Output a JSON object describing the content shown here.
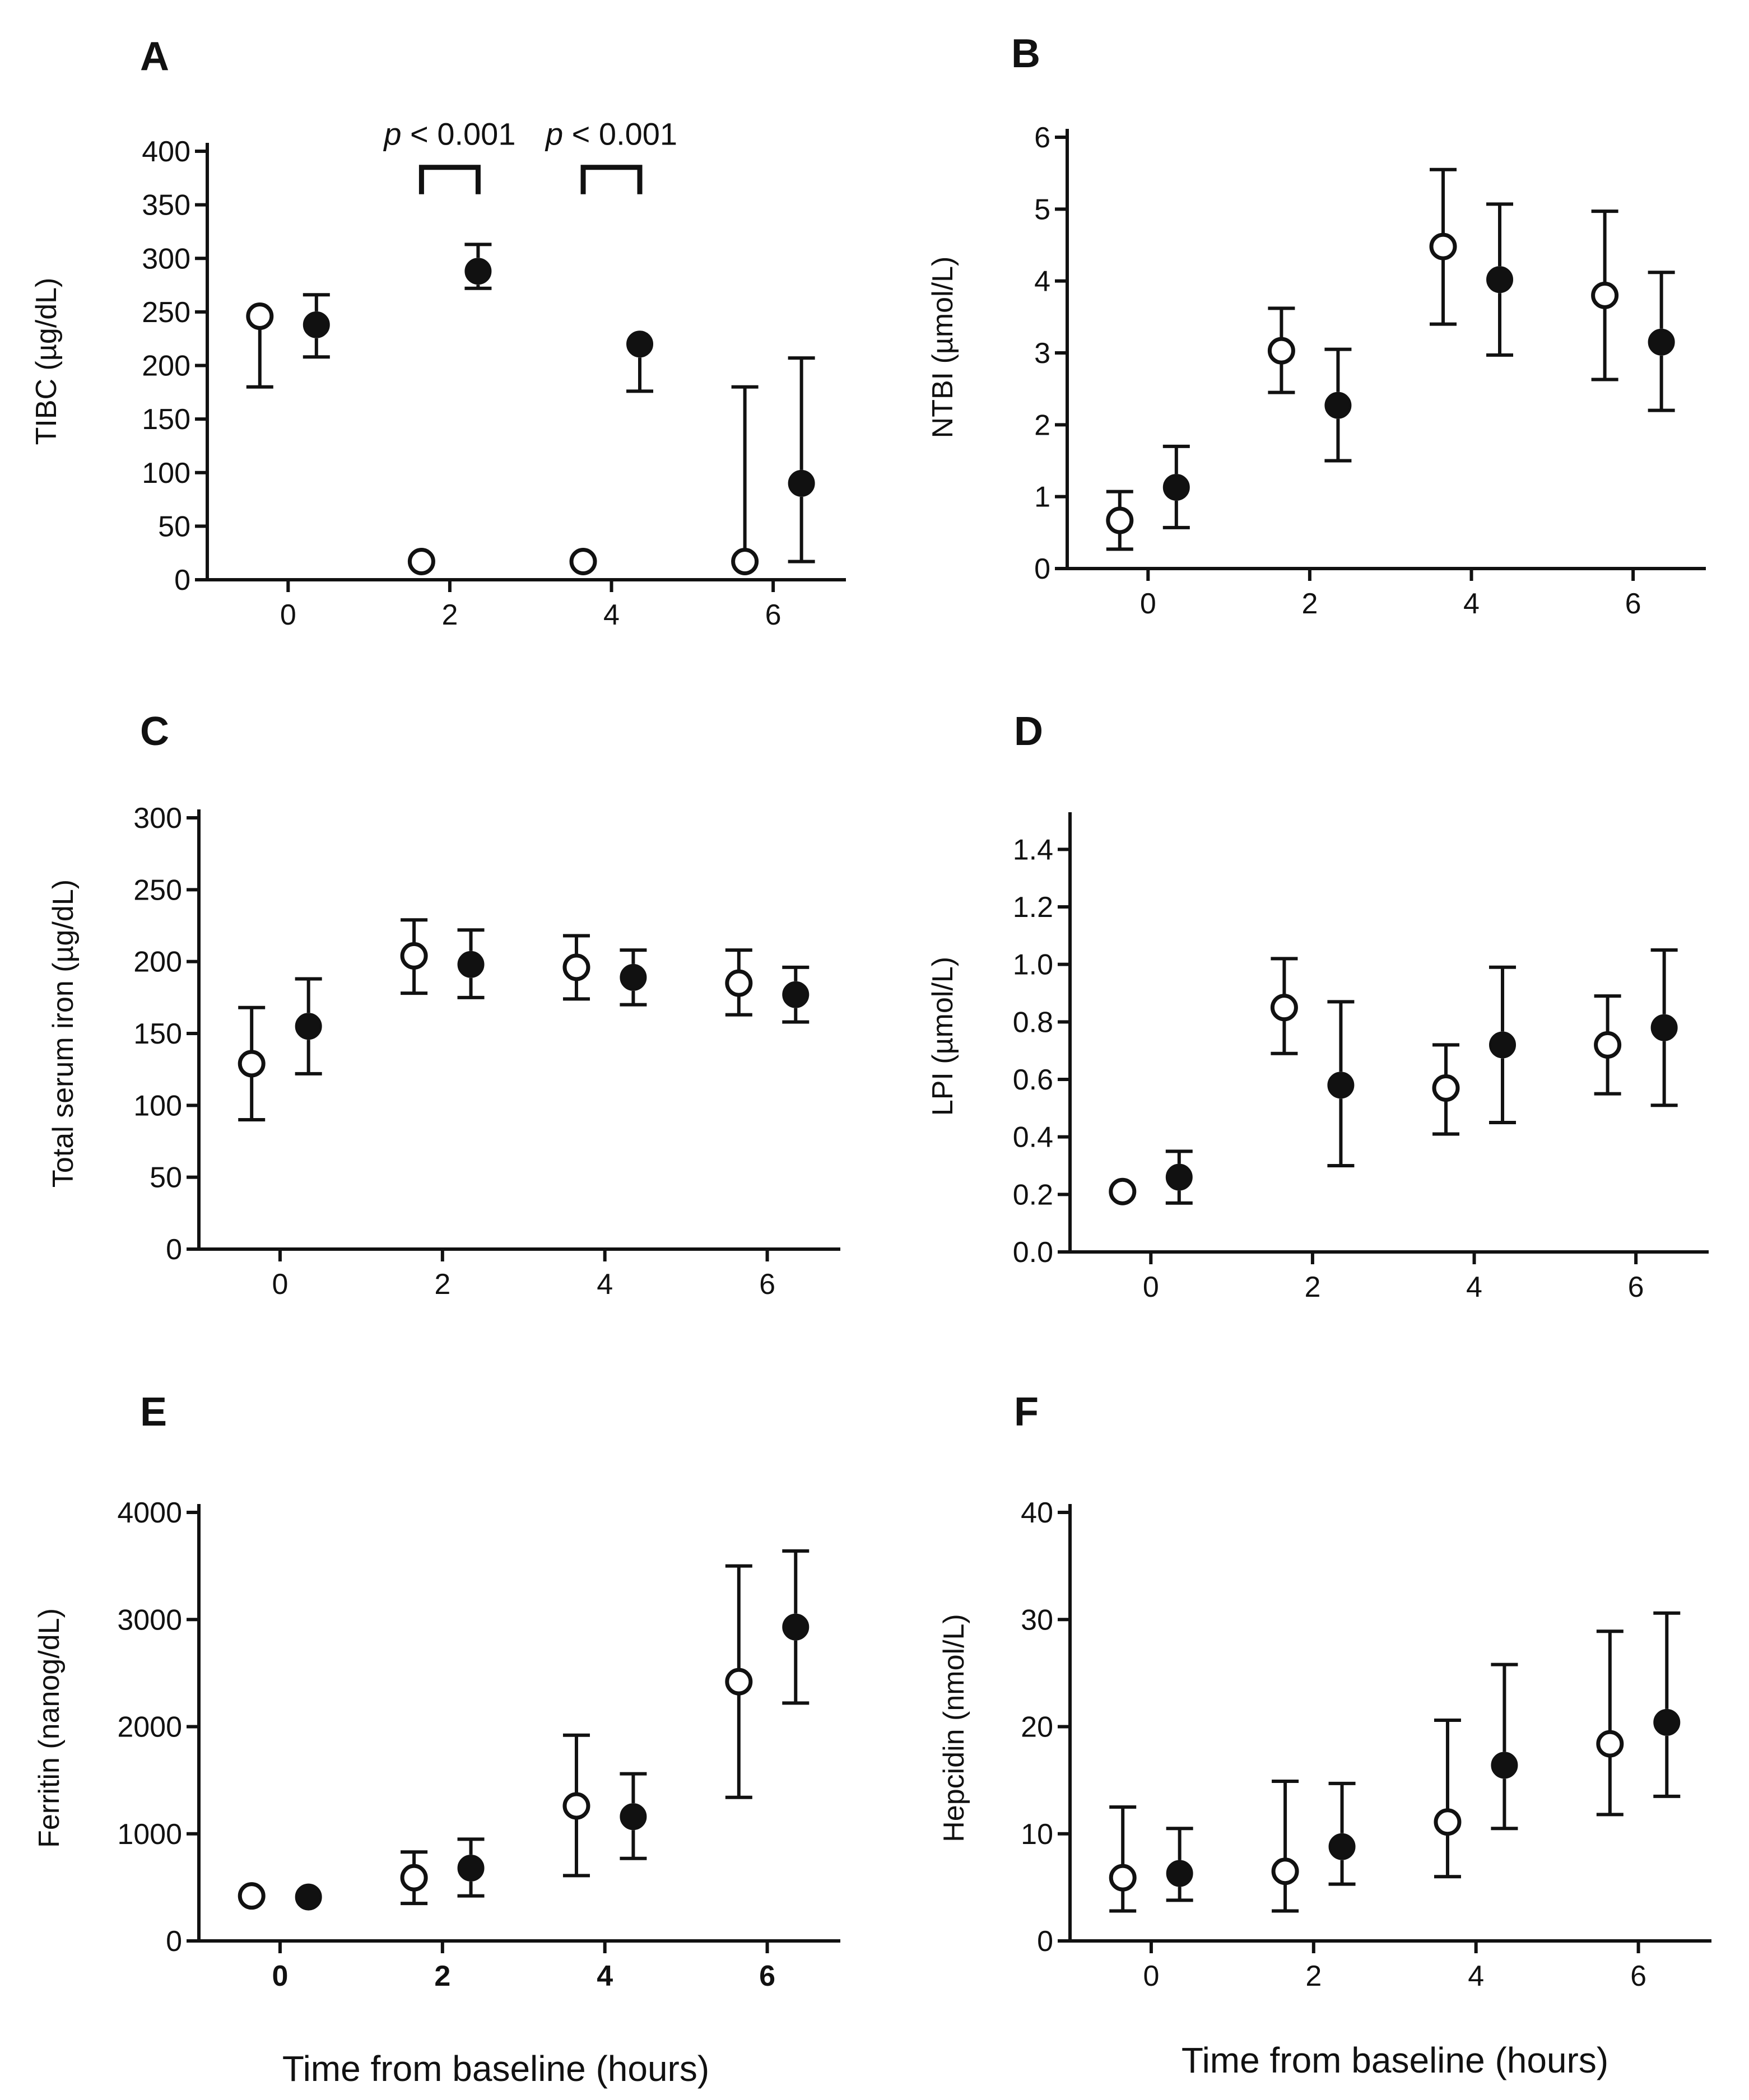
{
  "chart_data": [
    {
      "type": "scatter",
      "panel": "A",
      "ylabel": "TIBC (µg/dL)",
      "xlabel": "",
      "xticks": [
        "0",
        "2",
        "4",
        "6"
      ],
      "yticks": [
        "0",
        "50",
        "100",
        "150",
        "200",
        "250",
        "300",
        "350",
        "400"
      ],
      "xlim": [
        -1,
        6.9
      ],
      "ylim": [
        0,
        400
      ],
      "annotations": [
        {
          "label_italic": "p",
          "label_rest": " < 0.001",
          "x_left": 1.65,
          "x_right": 2.35,
          "y": 385
        },
        {
          "label_italic": "p",
          "label_rest": " < 0.001",
          "x_left": 3.65,
          "x_right": 4.35,
          "y": 385
        }
      ],
      "series": [
        {
          "name": "open",
          "marker": "open-circle",
          "points": [
            {
              "x": -0.35,
              "y": 246,
              "lo": 180,
              "hi": 258
            },
            {
              "x": 1.65,
              "y": 17,
              "lo": 17,
              "hi": 17
            },
            {
              "x": 3.65,
              "y": 17,
              "lo": 17,
              "hi": 17
            },
            {
              "x": 5.65,
              "y": 17,
              "lo": 17,
              "hi": 180
            }
          ]
        },
        {
          "name": "filled",
          "marker": "filled-circle",
          "points": [
            {
              "x": 0.35,
              "y": 238,
              "lo": 208,
              "hi": 266
            },
            {
              "x": 2.35,
              "y": 288,
              "lo": 272,
              "hi": 313
            },
            {
              "x": 4.35,
              "y": 220,
              "lo": 176,
              "hi": 228
            },
            {
              "x": 6.35,
              "y": 90,
              "lo": 17,
              "hi": 207
            }
          ]
        }
      ]
    },
    {
      "type": "scatter",
      "panel": "B",
      "ylabel": "NTBI (µmol/L)",
      "xlabel": "",
      "xticks": [
        "0",
        "2",
        "4",
        "6"
      ],
      "yticks": [
        "0",
        "1",
        "2",
        "3",
        "4",
        "5",
        "6"
      ],
      "xlim": [
        -1,
        6.9
      ],
      "ylim": [
        0,
        6
      ],
      "series": [
        {
          "name": "open",
          "marker": "open-circle",
          "points": [
            {
              "x": -0.35,
              "y": 0.67,
              "lo": 0.27,
              "hi": 1.07
            },
            {
              "x": 1.65,
              "y": 3.03,
              "lo": 2.45,
              "hi": 3.62
            },
            {
              "x": 3.65,
              "y": 4.48,
              "lo": 3.4,
              "hi": 5.55
            },
            {
              "x": 5.65,
              "y": 3.8,
              "lo": 2.63,
              "hi": 4.97
            }
          ]
        },
        {
          "name": "filled",
          "marker": "filled-circle",
          "points": [
            {
              "x": 0.35,
              "y": 1.13,
              "lo": 0.57,
              "hi": 1.7
            },
            {
              "x": 2.35,
              "y": 2.27,
              "lo": 1.5,
              "hi": 3.05
            },
            {
              "x": 4.35,
              "y": 4.02,
              "lo": 2.97,
              "hi": 5.07
            },
            {
              "x": 6.35,
              "y": 3.15,
              "lo": 2.2,
              "hi": 4.12
            }
          ]
        }
      ]
    },
    {
      "type": "scatter",
      "panel": "C",
      "ylabel": "Total serum iron (µg/dL)",
      "xlabel": "",
      "xticks": [
        "0",
        "2",
        "4",
        "6"
      ],
      "yticks": [
        "0",
        "50",
        "100",
        "150",
        "200",
        "250",
        "300"
      ],
      "xlim": [
        -1,
        6.9
      ],
      "ylim": [
        0,
        300
      ],
      "series": [
        {
          "name": "open",
          "marker": "open-circle",
          "points": [
            {
              "x": -0.35,
              "y": 129,
              "lo": 90,
              "hi": 168
            },
            {
              "x": 1.65,
              "y": 204,
              "lo": 178,
              "hi": 229
            },
            {
              "x": 3.65,
              "y": 196,
              "lo": 174,
              "hi": 218
            },
            {
              "x": 5.65,
              "y": 185,
              "lo": 163,
              "hi": 208
            }
          ]
        },
        {
          "name": "filled",
          "marker": "filled-circle",
          "points": [
            {
              "x": 0.35,
              "y": 155,
              "lo": 122,
              "hi": 188
            },
            {
              "x": 2.35,
              "y": 198,
              "lo": 175,
              "hi": 222
            },
            {
              "x": 4.35,
              "y": 189,
              "lo": 170,
              "hi": 208
            },
            {
              "x": 6.35,
              "y": 177,
              "lo": 158,
              "hi": 196
            }
          ]
        }
      ]
    },
    {
      "type": "scatter",
      "panel": "D",
      "ylabel": "LPI (µmol/L)",
      "xlabel": "",
      "xticks": [
        "0",
        "2",
        "4",
        "6"
      ],
      "yticks": [
        "0.0",
        "0.2",
        "0.4",
        "0.6",
        "0.8",
        "1.0",
        "1.2",
        "1.4"
      ],
      "xlim": [
        -1,
        6.9
      ],
      "ylim": [
        0,
        1.5
      ],
      "series": [
        {
          "name": "open",
          "marker": "open-circle",
          "points": [
            {
              "x": -0.35,
              "y": 0.21,
              "lo": 0.21,
              "hi": 0.21
            },
            {
              "x": 1.65,
              "y": 0.85,
              "lo": 0.69,
              "hi": 1.02
            },
            {
              "x": 3.65,
              "y": 0.57,
              "lo": 0.41,
              "hi": 0.72
            },
            {
              "x": 5.65,
              "y": 0.72,
              "lo": 0.55,
              "hi": 0.89
            }
          ]
        },
        {
          "name": "filled",
          "marker": "filled-circle",
          "points": [
            {
              "x": 0.35,
              "y": 0.26,
              "lo": 0.17,
              "hi": 0.35
            },
            {
              "x": 2.35,
              "y": 0.58,
              "lo": 0.3,
              "hi": 0.87
            },
            {
              "x": 4.35,
              "y": 0.72,
              "lo": 0.45,
              "hi": 0.99
            },
            {
              "x": 6.35,
              "y": 0.78,
              "lo": 0.51,
              "hi": 1.05
            }
          ]
        }
      ]
    },
    {
      "type": "scatter",
      "panel": "E",
      "ylabel": "Ferritin (nanog/dL)",
      "xlabel": "Time from baseline (hours)",
      "xticks": [
        "0",
        "2",
        "4",
        "6"
      ],
      "xticks_bold": true,
      "yticks": [
        "0",
        "1000",
        "2000",
        "3000",
        "4000"
      ],
      "xlim": [
        -1,
        6.9
      ],
      "ylim": [
        0,
        4000
      ],
      "series": [
        {
          "name": "open",
          "marker": "open-circle",
          "points": [
            {
              "x": -0.35,
              "y": 420,
              "lo": 420,
              "hi": 420
            },
            {
              "x": 1.65,
              "y": 590,
              "lo": 350,
              "hi": 830
            },
            {
              "x": 3.65,
              "y": 1260,
              "lo": 610,
              "hi": 1920
            },
            {
              "x": 5.65,
              "y": 2420,
              "lo": 1340,
              "hi": 3500
            }
          ]
        },
        {
          "name": "filled",
          "marker": "filled-circle",
          "points": [
            {
              "x": 0.35,
              "y": 410,
              "lo": 340,
              "hi": 480
            },
            {
              "x": 2.35,
              "y": 680,
              "lo": 420,
              "hi": 950
            },
            {
              "x": 4.35,
              "y": 1160,
              "lo": 770,
              "hi": 1560
            },
            {
              "x": 6.35,
              "y": 2930,
              "lo": 2220,
              "hi": 3640
            }
          ]
        }
      ]
    },
    {
      "type": "scatter",
      "panel": "F",
      "ylabel": "Hepcidin (nmol/L)",
      "xlabel": "Time from baseline (hours)",
      "xticks": [
        "0",
        "2",
        "4",
        "6"
      ],
      "yticks": [
        "0",
        "10",
        "20",
        "30",
        "40"
      ],
      "xlim": [
        -1,
        6.9
      ],
      "ylim": [
        0,
        40
      ],
      "series": [
        {
          "name": "open",
          "marker": "open-circle",
          "points": [
            {
              "x": -0.35,
              "y": 5.9,
              "lo": 2.8,
              "hi": 12.5
            },
            {
              "x": 1.65,
              "y": 6.5,
              "lo": 2.8,
              "hi": 14.9
            },
            {
              "x": 3.65,
              "y": 11.1,
              "lo": 6.0,
              "hi": 20.6
            },
            {
              "x": 5.65,
              "y": 18.4,
              "lo": 11.8,
              "hi": 28.9
            }
          ]
        },
        {
          "name": "filled",
          "marker": "filled-circle",
          "points": [
            {
              "x": 0.35,
              "y": 6.3,
              "lo": 3.8,
              "hi": 10.5
            },
            {
              "x": 2.35,
              "y": 8.8,
              "lo": 5.3,
              "hi": 14.7
            },
            {
              "x": 4.35,
              "y": 16.4,
              "lo": 10.5,
              "hi": 25.8
            },
            {
              "x": 6.35,
              "y": 20.4,
              "lo": 13.5,
              "hi": 30.6
            }
          ]
        }
      ]
    }
  ]
}
